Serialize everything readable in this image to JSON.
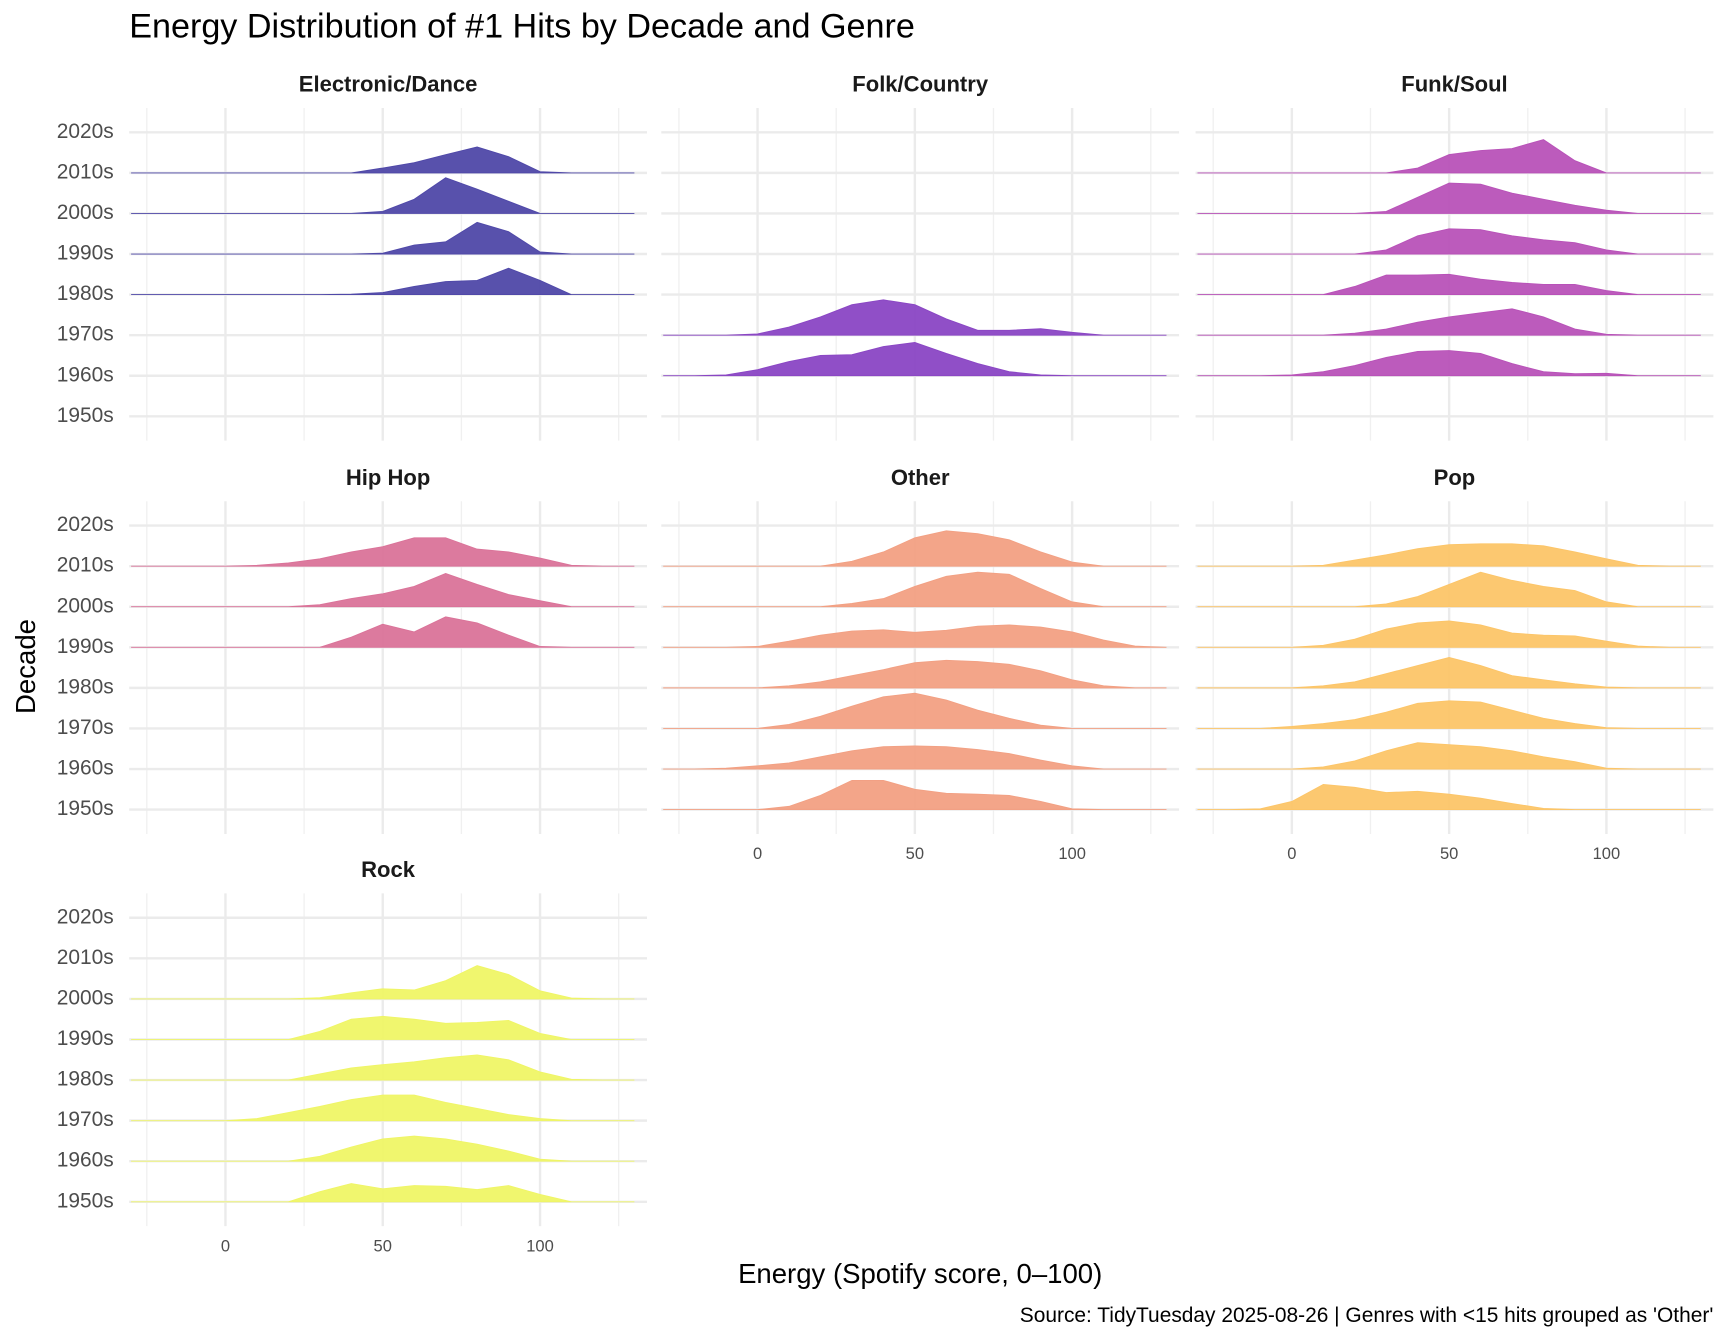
{
  "title": "Energy Distribution of #1 Hits by Decade and Genre",
  "x_label": "Energy (Spotify score, 0–100)",
  "y_label": "Decade",
  "caption": "Source: TidyTuesday 2025-08-26 | Genres with <15 hits grouped as 'Other'",
  "chart_data": [
    {
      "type": "ridgeline",
      "title": "Electronic/Dance",
      "color": "#4f48a8",
      "categories": [
        "1950s",
        "1960s",
        "1970s",
        "1980s",
        "1990s",
        "2000s",
        "2010s",
        "2020s"
      ],
      "x": [
        -30,
        -20,
        -10,
        0,
        10,
        20,
        30,
        40,
        50,
        60,
        70,
        80,
        90,
        100,
        110,
        120,
        130
      ],
      "densities": [
        null,
        null,
        null,
        [
          0,
          0,
          0,
          0,
          0,
          0,
          0,
          0.01,
          0.05,
          0.2,
          0.32,
          0.35,
          0.65,
          0.35,
          0,
          0,
          0
        ],
        [
          0,
          0,
          0,
          0,
          0,
          0,
          0,
          0,
          0.02,
          0.22,
          0.3,
          0.78,
          0.55,
          0.05,
          0,
          0,
          0
        ],
        [
          0,
          0,
          0,
          0,
          0,
          0,
          0,
          0,
          0.05,
          0.35,
          0.88,
          0.6,
          0.3,
          0,
          0,
          0,
          0
        ],
        [
          0,
          0,
          0,
          0,
          0,
          0,
          0,
          0,
          0.12,
          0.25,
          0.45,
          0.64,
          0.4,
          0.03,
          0,
          0,
          0
        ],
        null
      ],
      "xlim": [
        -30.6,
        134
      ],
      "ylim": [
        -0.6,
        7.6
      ],
      "xticks": [
        0,
        50,
        100
      ],
      "xminor": [
        -25,
        25,
        75,
        125
      ],
      "show_xtick_labels": false,
      "show_ytick_labels": true
    },
    {
      "type": "ridgeline",
      "title": "Folk/Country",
      "color": "#8a46c4",
      "categories": [
        "1950s",
        "1960s",
        "1970s",
        "1980s",
        "1990s",
        "2000s",
        "2010s",
        "2020s"
      ],
      "x": [
        -30,
        -20,
        -10,
        0,
        10,
        20,
        30,
        40,
        50,
        60,
        70,
        80,
        90,
        100,
        110,
        120,
        130
      ],
      "densities": [
        null,
        [
          0,
          0,
          0.02,
          0.15,
          0.35,
          0.5,
          0.52,
          0.72,
          0.82,
          0.55,
          0.3,
          0.1,
          0.02,
          0,
          0,
          0,
          0
        ],
        [
          0,
          0,
          0,
          0.03,
          0.2,
          0.45,
          0.75,
          0.87,
          0.75,
          0.4,
          0.12,
          0.12,
          0.16,
          0.07,
          0,
          0,
          0
        ],
        null,
        null,
        null,
        null,
        null
      ],
      "xlim": [
        -30.6,
        134
      ],
      "ylim": [
        -0.6,
        7.6
      ],
      "xticks": [
        0,
        50,
        100
      ],
      "xminor": [
        -25,
        25,
        75,
        125
      ],
      "show_xtick_labels": false,
      "show_ytick_labels": false
    },
    {
      "type": "ridgeline",
      "title": "Funk/Soul",
      "color": "#b852b8",
      "categories": [
        "1950s",
        "1960s",
        "1970s",
        "1980s",
        "1990s",
        "2000s",
        "2010s",
        "2020s"
      ],
      "x": [
        -30,
        -20,
        -10,
        0,
        10,
        20,
        30,
        40,
        50,
        60,
        70,
        80,
        90,
        100,
        110,
        120,
        130
      ],
      "densities": [
        null,
        [
          0,
          0,
          0,
          0.02,
          0.1,
          0.25,
          0.45,
          0.6,
          0.62,
          0.55,
          0.3,
          0.1,
          0.05,
          0.06,
          0,
          0,
          0
        ],
        [
          0,
          0,
          0,
          0,
          0,
          0.05,
          0.15,
          0.32,
          0.45,
          0.55,
          0.65,
          0.45,
          0.15,
          0.02,
          0,
          0,
          0
        ],
        [
          0,
          0,
          0,
          0,
          0,
          0.2,
          0.48,
          0.48,
          0.5,
          0.38,
          0.3,
          0.25,
          0.25,
          0.1,
          0,
          0,
          0
        ],
        [
          0,
          0,
          0,
          0,
          0,
          0,
          0.1,
          0.45,
          0.62,
          0.6,
          0.45,
          0.35,
          0.28,
          0.1,
          0,
          0,
          0
        ],
        [
          0,
          0,
          0,
          0,
          0,
          0,
          0.05,
          0.4,
          0.75,
          0.72,
          0.5,
          0.35,
          0.2,
          0.08,
          0,
          0,
          0
        ],
        [
          0,
          0,
          0,
          0,
          0,
          0,
          0,
          0.12,
          0.45,
          0.55,
          0.6,
          0.82,
          0.3,
          0,
          0,
          0,
          0
        ],
        null
      ],
      "xlim": [
        -30.6,
        134
      ],
      "ylim": [
        -0.6,
        7.6
      ],
      "xticks": [
        0,
        50,
        100
      ],
      "xminor": [
        -25,
        25,
        75,
        125
      ],
      "show_xtick_labels": false,
      "show_ytick_labels": false
    },
    {
      "type": "ridgeline",
      "title": "Hip Hop",
      "color": "#da7399",
      "categories": [
        "1950s",
        "1960s",
        "1970s",
        "1980s",
        "1990s",
        "2000s",
        "2010s",
        "2020s"
      ],
      "x": [
        -30,
        -20,
        -10,
        0,
        10,
        20,
        30,
        40,
        50,
        60,
        70,
        80,
        90,
        100,
        110,
        120,
        130
      ],
      "densities": [
        null,
        null,
        null,
        null,
        [
          0,
          0,
          0,
          0,
          0,
          0,
          0,
          0.25,
          0.57,
          0.38,
          0.75,
          0.6,
          0.3,
          0.02,
          0,
          0,
          0
        ],
        [
          0,
          0,
          0,
          0,
          0,
          0,
          0.05,
          0.2,
          0.32,
          0.5,
          0.82,
          0.55,
          0.3,
          0.15,
          0,
          0,
          0
        ],
        [
          0,
          0,
          0,
          0,
          0.02,
          0.08,
          0.18,
          0.35,
          0.48,
          0.7,
          0.7,
          0.42,
          0.35,
          0.2,
          0.02,
          0,
          0
        ],
        null
      ],
      "xlim": [
        -30.6,
        134
      ],
      "ylim": [
        -0.6,
        7.6
      ],
      "xticks": [
        0,
        50,
        100
      ],
      "xminor": [
        -25,
        25,
        75,
        125
      ],
      "show_xtick_labels": false,
      "show_ytick_labels": true
    },
    {
      "type": "ridgeline",
      "title": "Other",
      "color": "#f2a083",
      "categories": [
        "1950s",
        "1960s",
        "1970s",
        "1980s",
        "1990s",
        "2000s",
        "2010s",
        "2020s"
      ],
      "x": [
        -30,
        -20,
        -10,
        0,
        10,
        20,
        30,
        40,
        50,
        60,
        70,
        80,
        90,
        100,
        110,
        120,
        130
      ],
      "densities": [
        [
          0,
          0,
          0,
          0,
          0.08,
          0.35,
          0.72,
          0.72,
          0.5,
          0.4,
          0.38,
          0.35,
          0.2,
          0.02,
          0,
          0,
          0
        ],
        [
          0,
          0,
          0.02,
          0.08,
          0.15,
          0.3,
          0.45,
          0.55,
          0.57,
          0.55,
          0.48,
          0.38,
          0.22,
          0.08,
          0,
          0,
          0
        ],
        [
          0,
          0,
          0,
          0,
          0.1,
          0.3,
          0.55,
          0.78,
          0.87,
          0.7,
          0.45,
          0.25,
          0.08,
          0,
          0,
          0,
          0
        ],
        [
          0,
          0,
          0,
          0,
          0.05,
          0.15,
          0.3,
          0.45,
          0.62,
          0.68,
          0.65,
          0.58,
          0.42,
          0.2,
          0.05,
          0,
          0
        ],
        [
          0,
          0,
          0,
          0.02,
          0.15,
          0.3,
          0.4,
          0.43,
          0.37,
          0.42,
          0.52,
          0.55,
          0.5,
          0.38,
          0.18,
          0.03,
          0
        ],
        [
          0,
          0,
          0,
          0,
          0,
          0,
          0.08,
          0.2,
          0.5,
          0.75,
          0.85,
          0.8,
          0.45,
          0.12,
          0,
          0,
          0
        ],
        [
          0,
          0,
          0,
          0,
          0,
          0,
          0.12,
          0.35,
          0.7,
          0.87,
          0.8,
          0.65,
          0.35,
          0.1,
          0,
          0,
          0
        ],
        null
      ],
      "xlim": [
        -30.6,
        134
      ],
      "ylim": [
        -0.6,
        7.6
      ],
      "xticks": [
        0,
        50,
        100
      ],
      "xminor": [
        -25,
        25,
        75,
        125
      ],
      "show_xtick_labels": true,
      "show_ytick_labels": false
    },
    {
      "type": "ridgeline",
      "title": "Pop",
      "color": "#fcc568",
      "categories": [
        "1950s",
        "1960s",
        "1970s",
        "1980s",
        "1990s",
        "2000s",
        "2010s",
        "2020s"
      ],
      "x": [
        -30,
        -20,
        -10,
        0,
        10,
        20,
        30,
        40,
        50,
        60,
        70,
        80,
        90,
        100,
        110,
        120,
        130
      ],
      "densities": [
        [
          0,
          0,
          0.02,
          0.2,
          0.62,
          0.55,
          0.42,
          0.45,
          0.38,
          0.28,
          0.15,
          0.03,
          0,
          0,
          0,
          0,
          0
        ],
        [
          0,
          0,
          0,
          0,
          0.05,
          0.2,
          0.45,
          0.65,
          0.6,
          0.55,
          0.45,
          0.3,
          0.18,
          0.02,
          0,
          0,
          0
        ],
        [
          0,
          0,
          0,
          0.05,
          0.12,
          0.22,
          0.4,
          0.62,
          0.68,
          0.65,
          0.45,
          0.25,
          0.12,
          0.02,
          0,
          0,
          0
        ],
        [
          0,
          0,
          0,
          0,
          0.05,
          0.15,
          0.35,
          0.55,
          0.75,
          0.55,
          0.3,
          0.2,
          0.1,
          0.02,
          0,
          0,
          0
        ],
        [
          0,
          0,
          0,
          0,
          0.05,
          0.2,
          0.45,
          0.6,
          0.65,
          0.55,
          0.35,
          0.3,
          0.28,
          0.15,
          0.03,
          0,
          0
        ],
        [
          0,
          0,
          0,
          0,
          0,
          0,
          0.07,
          0.25,
          0.55,
          0.85,
          0.65,
          0.5,
          0.4,
          0.12,
          0,
          0,
          0
        ],
        [
          0,
          0,
          0,
          0,
          0.02,
          0.15,
          0.28,
          0.43,
          0.53,
          0.55,
          0.55,
          0.5,
          0.35,
          0.18,
          0.02,
          0,
          0
        ],
        null
      ],
      "xlim": [
        -30.6,
        134
      ],
      "ylim": [
        -0.6,
        7.6
      ],
      "xticks": [
        0,
        50,
        100
      ],
      "xminor": [
        -25,
        25,
        75,
        125
      ],
      "show_xtick_labels": true,
      "show_ytick_labels": false
    },
    {
      "type": "ridgeline",
      "title": "Rock",
      "color": "#eff566",
      "categories": [
        "1950s",
        "1960s",
        "1970s",
        "1980s",
        "1990s",
        "2000s",
        "2010s",
        "2020s"
      ],
      "x": [
        -30,
        -20,
        -10,
        0,
        10,
        20,
        30,
        40,
        50,
        60,
        70,
        80,
        90,
        100,
        110,
        120,
        130
      ],
      "densities": [
        [
          0,
          0,
          0,
          0,
          0,
          0,
          0.25,
          0.45,
          0.32,
          0.4,
          0.38,
          0.3,
          0.4,
          0.18,
          0,
          0,
          0
        ],
        [
          0,
          0,
          0,
          0,
          0,
          0,
          0.12,
          0.35,
          0.55,
          0.62,
          0.55,
          0.42,
          0.25,
          0.05,
          0,
          0,
          0
        ],
        [
          0,
          0,
          0,
          0,
          0.05,
          0.2,
          0.35,
          0.52,
          0.63,
          0.63,
          0.45,
          0.3,
          0.15,
          0.05,
          0,
          0,
          0
        ],
        [
          0,
          0,
          0,
          0,
          0,
          0,
          0.15,
          0.3,
          0.38,
          0.45,
          0.55,
          0.62,
          0.5,
          0.2,
          0.02,
          0,
          0
        ],
        [
          0,
          0,
          0,
          0,
          0,
          0,
          0.2,
          0.5,
          0.57,
          0.5,
          0.4,
          0.42,
          0.47,
          0.15,
          0,
          0,
          0
        ],
        [
          0,
          0,
          0,
          0,
          0,
          0,
          0.03,
          0.15,
          0.25,
          0.22,
          0.45,
          0.82,
          0.6,
          0.2,
          0.02,
          0,
          0
        ],
        null,
        null
      ],
      "xlim": [
        -30.6,
        134
      ],
      "ylim": [
        -0.6,
        7.6
      ],
      "xticks": [
        0,
        50,
        100
      ],
      "xminor": [
        -25,
        25,
        75,
        125
      ],
      "show_xtick_labels": true,
      "show_ytick_labels": true
    }
  ]
}
